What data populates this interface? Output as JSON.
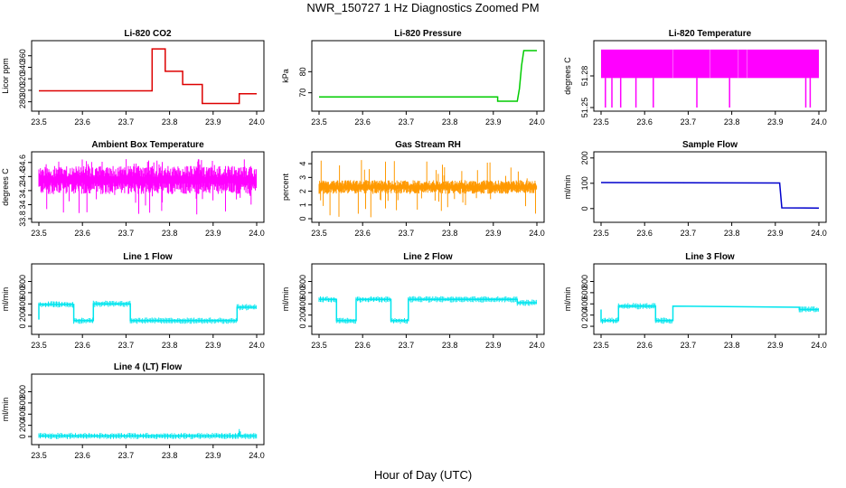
{
  "figure": {
    "title": "NWR_150727  1 Hz Diagnostics Zoomed PM",
    "xlabel": "Hour of Day (UTC)"
  },
  "chart_data": [
    {
      "type": "line",
      "title": "Li-820 CO2",
      "ylabel": "Licor ppm",
      "xlim": [
        23.5,
        24.0
      ],
      "xticks": [
        "23.5",
        "23.6",
        "23.7",
        "23.8",
        "23.9",
        "24.0"
      ],
      "ylim": [
        270,
        380
      ],
      "yticks": [
        280,
        300,
        320,
        340,
        360
      ],
      "color": "#dd0000",
      "series": [
        {
          "x": [
            23.5,
            23.76,
            23.76,
            23.79,
            23.79,
            23.83,
            23.83,
            23.875,
            23.875,
            23.96,
            23.96,
            24.0
          ],
          "y": [
            299,
            299,
            372,
            372,
            333,
            333,
            310,
            310,
            277,
            277,
            294,
            294
          ]
        }
      ]
    },
    {
      "type": "line",
      "title": "Li-820 Pressure",
      "ylabel": "kPa",
      "xlim": [
        23.5,
        24.0
      ],
      "xticks": [
        "23.5",
        "23.6",
        "23.7",
        "23.8",
        "23.9",
        "24.0"
      ],
      "ylim": [
        63,
        93
      ],
      "yticks": [
        70,
        80
      ],
      "color": "#00cc00",
      "series": [
        {
          "x": [
            23.5,
            23.91,
            23.91,
            23.955,
            23.96,
            23.965,
            23.97,
            24.0
          ],
          "y": [
            68,
            68,
            66,
            66,
            72,
            83,
            90,
            90
          ]
        }
      ]
    },
    {
      "type": "line",
      "title": "Li-820 Temperature",
      "ylabel": "degrees C",
      "xlim": [
        23.5,
        24.0
      ],
      "xticks": [
        "23.5",
        "23.6",
        "23.7",
        "23.8",
        "23.9",
        "24.0"
      ],
      "ylim": [
        51.25,
        51.31
      ],
      "yticks": [
        51.25,
        51.28
      ],
      "color": "#ff00ff",
      "band": [
        51.278,
        51.305
      ],
      "dips": [
        23.51,
        23.525,
        23.545,
        23.58,
        23.62,
        23.72,
        23.795,
        23.97,
        23.98
      ],
      "dip_to": 51.25
    },
    {
      "type": "line",
      "title": "Ambient Box Temperature",
      "ylabel": "degrees C",
      "xlim": [
        23.5,
        24.0
      ],
      "xticks": [
        "23.5",
        "23.6",
        "23.7",
        "23.8",
        "23.9",
        "24.0"
      ],
      "ylim": [
        33.8,
        34.7
      ],
      "yticks": [
        33.8,
        34.0,
        34.2,
        34.4,
        34.6
      ],
      "color": "#ff00ff",
      "band": [
        34.15,
        34.55
      ],
      "noise_range": [
        33.85,
        34.65
      ]
    },
    {
      "type": "line",
      "title": "Gas Stream RH",
      "ylabel": "percent",
      "xlim": [
        23.5,
        24.0
      ],
      "xticks": [
        "23.5",
        "23.6",
        "23.7",
        "23.8",
        "23.9",
        "24.0"
      ],
      "ylim": [
        0,
        4.6
      ],
      "yticks": [
        0,
        1,
        2,
        3,
        4
      ],
      "color": "#ff9900",
      "band": [
        1.8,
        2.8
      ],
      "noise_range": [
        0.1,
        4.3
      ]
    },
    {
      "type": "line",
      "title": "Sample Flow",
      "ylabel": "ml/min",
      "xlim": [
        23.5,
        24.0
      ],
      "xticks": [
        "23.5",
        "23.6",
        "23.7",
        "23.8",
        "23.9",
        "24.0"
      ],
      "ylim": [
        -40,
        210
      ],
      "yticks": [
        0,
        100,
        200
      ],
      "color": "#0000cc",
      "series": [
        {
          "x": [
            23.5,
            23.91,
            23.915,
            24.0
          ],
          "y": [
            103,
            101,
            3,
            2
          ]
        }
      ]
    },
    {
      "type": "line",
      "title": "Line 1 Flow",
      "ylabel": "ml/min",
      "xlim": [
        23.5,
        24.0
      ],
      "xticks": [
        "23.5",
        "23.6",
        "23.7",
        "23.8",
        "23.9",
        "24.0"
      ],
      "ylim": [
        -80,
        1050
      ],
      "yticks": [
        0,
        200,
        400,
        600,
        800
      ],
      "color": "#00e5ee",
      "series": [
        {
          "x": [
            23.5,
            23.5,
            23.58,
            23.58,
            23.625,
            23.625,
            23.71,
            23.71,
            23.955,
            23.955,
            24.0
          ],
          "y": [
            120,
            390,
            390,
            100,
            100,
            400,
            400,
            100,
            100,
            340,
            340
          ]
        }
      ]
    },
    {
      "type": "line",
      "title": "Line 2 Flow",
      "ylabel": "ml/min",
      "xlim": [
        23.5,
        24.0
      ],
      "xticks": [
        "23.5",
        "23.6",
        "23.7",
        "23.8",
        "23.9",
        "24.0"
      ],
      "ylim": [
        -80,
        1050
      ],
      "yticks": [
        0,
        200,
        400,
        600,
        800
      ],
      "color": "#00e5ee",
      "series": [
        {
          "x": [
            23.5,
            23.54,
            23.54,
            23.585,
            23.585,
            23.665,
            23.665,
            23.705,
            23.705,
            23.955,
            23.955,
            24.0
          ],
          "y": [
            480,
            480,
            100,
            100,
            480,
            480,
            100,
            100,
            480,
            480,
            420,
            420
          ]
        }
      ]
    },
    {
      "type": "line",
      "title": "Line 3 Flow",
      "ylabel": "ml/min",
      "xlim": [
        23.5,
        24.0
      ],
      "xticks": [
        "23.5",
        "23.6",
        "23.7",
        "23.8",
        "23.9",
        "24.0"
      ],
      "ylim": [
        -80,
        1050
      ],
      "yticks": [
        0,
        200,
        400,
        600,
        800
      ],
      "color": "#00e5ee",
      "series": [
        {
          "x": [
            23.5,
            23.5,
            23.54,
            23.54,
            23.625,
            23.625,
            23.665,
            23.665,
            23.955,
            23.955,
            24.0
          ],
          "y": [
            300,
            100,
            100,
            360,
            360,
            100,
            100,
            360,
            340,
            300,
            300
          ]
        }
      ]
    },
    {
      "type": "line",
      "title": "Line 4 (LT) Flow",
      "ylabel": "ml/min",
      "xlim": [
        23.5,
        24.0
      ],
      "xticks": [
        "23.5",
        "23.6",
        "23.7",
        "23.8",
        "23.9",
        "24.0"
      ],
      "ylim": [
        -80,
        1050
      ],
      "yticks": [
        0,
        200,
        400,
        600,
        800
      ],
      "color": "#00e5ee",
      "series": [
        {
          "x": [
            23.5,
            23.96,
            23.96,
            23.962,
            23.962,
            24.0
          ],
          "y": [
            10,
            10,
            80,
            80,
            10,
            10
          ]
        }
      ]
    }
  ]
}
